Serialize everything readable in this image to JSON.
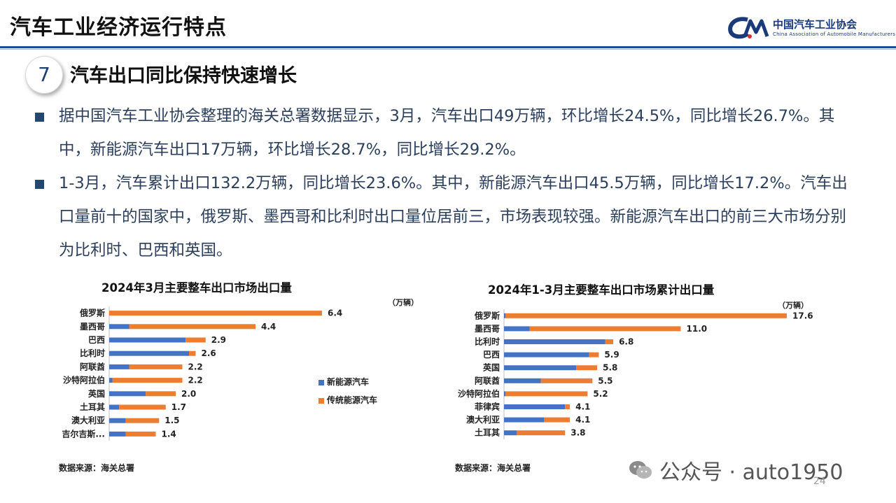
{
  "header": {
    "title": "汽车工业经济运行特点",
    "logo_cn": "中国汽车工业协会",
    "logo_en": "China Association of Automobile Manufacturers"
  },
  "section": {
    "number": "7",
    "title": "汽车出口同比保持快速增长"
  },
  "paragraphs": [
    "据中国汽车工业协会整理的海关总署数据显示，3月，汽车出口49万辆，环比增长24.5%，同比增长26.7%。其中，新能源汽车出口17万辆，环比增长28.7%，同比增长29.2%。",
    "1-3月，汽车累计出口132.2万辆，同比增长23.6%。其中，新能源汽车出口45.5万辆，同比增长17.2%。汽车出口量前十的国家中，俄罗斯、墨西哥和比利时出口量位居前三，市场表现较强。新能源汽车出口的前三大市场分别为比利时、巴西和英国。"
  ],
  "colors": {
    "nev": "#4472c4",
    "traditional": "#ed7d31",
    "accent": "#1d4f8c"
  },
  "chart_data": [
    {
      "type": "bar",
      "orientation": "horizontal",
      "stacked": true,
      "title": "2024年3月主要整车出口市场出口量",
      "unit": "（万辆）",
      "categories": [
        "俄罗斯",
        "墨西哥",
        "巴西",
        "比利时",
        "阿联酋",
        "沙特阿拉伯",
        "英国",
        "土耳其",
        "澳大利亚",
        "吉尔吉斯..."
      ],
      "series": [
        {
          "name": "新能源汽车",
          "values": [
            0.0,
            0.6,
            2.3,
            2.4,
            0.6,
            0.1,
            1.1,
            0.3,
            0.5,
            0.5
          ]
        },
        {
          "name": "传统能源汽车",
          "values": [
            6.4,
            3.8,
            0.6,
            0.2,
            1.6,
            2.1,
            0.9,
            1.4,
            1.0,
            0.9
          ]
        }
      ],
      "totals": [
        "6.4",
        "4.4",
        "2.9",
        "2.6",
        "2.2",
        "2.2",
        "2.0",
        "1.7",
        "1.5",
        "1.4"
      ],
      "legend": "right",
      "source": "数据来源：海关总署"
    },
    {
      "type": "bar",
      "orientation": "horizontal",
      "stacked": true,
      "title": "2024年1-3月主要整车出口市场累计出口量",
      "unit": "（万辆）",
      "categories": [
        "俄罗斯",
        "墨西哥",
        "比利时",
        "巴西",
        "英国",
        "阿联酋",
        "沙特阿拉伯",
        "菲律宾",
        "澳大利亚",
        "土耳其"
      ],
      "series": [
        {
          "name": "新能源汽车",
          "values": [
            0.1,
            1.6,
            6.3,
            5.3,
            4.5,
            2.3,
            0.1,
            3.8,
            2.5,
            0.8
          ]
        },
        {
          "name": "传统能源汽车",
          "values": [
            17.5,
            9.4,
            0.5,
            0.6,
            1.3,
            3.2,
            5.1,
            0.3,
            1.6,
            3.0
          ]
        }
      ],
      "totals": [
        "17.6",
        "11.0",
        "6.8",
        "5.9",
        "5.8",
        "5.5",
        "5.2",
        "4.1",
        "4.1",
        "3.8"
      ],
      "source": "数据来源：海关总署"
    }
  ],
  "footer": {
    "wechat": "公众号 · auto1950",
    "page": "24"
  }
}
